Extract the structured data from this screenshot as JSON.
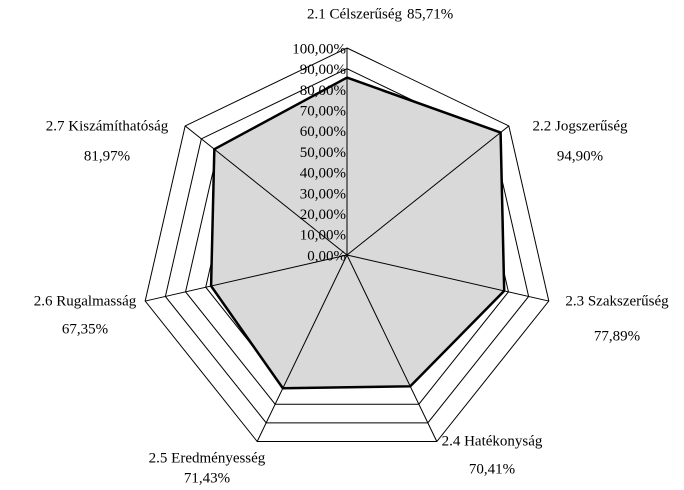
{
  "chart_data": {
    "type": "radar",
    "categories": [
      "2.1 Célszerűség",
      "2.2 Jogszerűség",
      "2.3 Szakszerűség",
      "2.4 Hatékonyság",
      "2.5 Eredményesség",
      "2.6 Rugalmasság",
      "2.7 Kiszámíthatóság"
    ],
    "values": [
      85.71,
      94.9,
      77.89,
      70.41,
      71.43,
      67.35,
      81.97
    ],
    "value_labels": [
      "85,71%",
      "94,90%",
      "77,89%",
      "70,41%",
      "71,43%",
      "67,35%",
      "81,97%"
    ],
    "color": "#d9d9d9",
    "ylim": [
      0,
      100
    ],
    "yticks": [
      {
        "value": 0,
        "label": "0,00%"
      },
      {
        "value": 10,
        "label": "10,00%"
      },
      {
        "value": 20,
        "label": "20,00%"
      },
      {
        "value": 30,
        "label": "30,00%"
      },
      {
        "value": 40,
        "label": "40,00%"
      },
      {
        "value": 50,
        "label": "50,00%"
      },
      {
        "value": 60,
        "label": "60,00%"
      },
      {
        "value": 70,
        "label": "70,00%"
      },
      {
        "value": 80,
        "label": "80,00%"
      },
      {
        "value": 90,
        "label": "90,00%"
      },
      {
        "value": 100,
        "label": "100,00%"
      }
    ],
    "grid": true
  }
}
